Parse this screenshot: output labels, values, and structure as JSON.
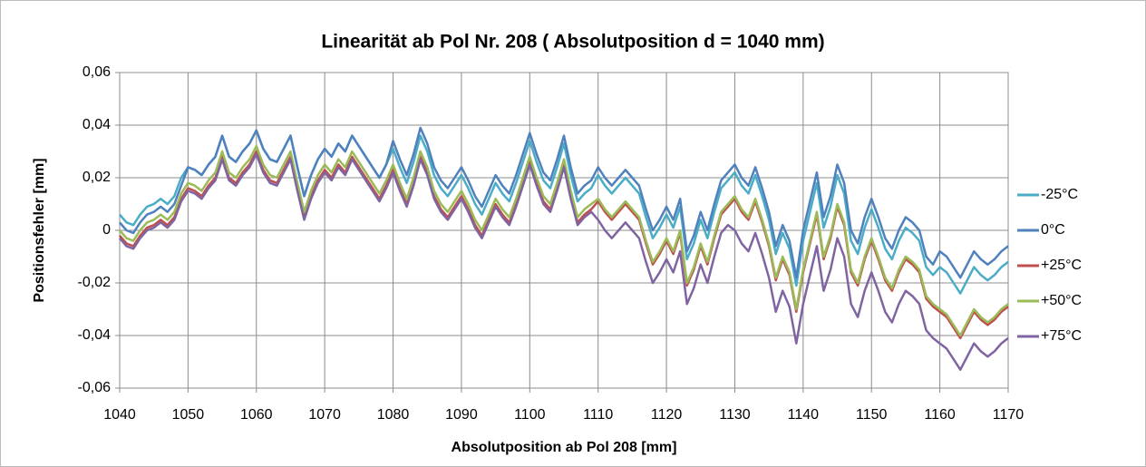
{
  "chart_data": {
    "type": "line",
    "title": "Linearität ab Pol Nr. 208 ( Absolutposition d = 1040 mm)",
    "x_label": "Absolutposition  ab Pol 208 [mm]",
    "y_label": "Positionsfehler [mm]",
    "xlim": [
      1040,
      1170
    ],
    "xticks": [
      1040,
      1050,
      1060,
      1070,
      1080,
      1090,
      1100,
      1110,
      1120,
      1130,
      1140,
      1150,
      1160,
      1170
    ],
    "ylim": [
      -0.06,
      0.06
    ],
    "yticks": [
      {
        "value": -0.06,
        "label": "-0,06"
      },
      {
        "value": -0.04,
        "label": "-0,04"
      },
      {
        "value": -0.02,
        "label": "-0,02"
      },
      0,
      {
        "value": 0.02,
        "label": "0,02"
      },
      {
        "value": 0.04,
        "label": "0,04"
      },
      {
        "value": 0.06,
        "label": "0,06"
      }
    ],
    "grid": true,
    "legend": "right",
    "x": [
      1040,
      1041,
      1042,
      1043,
      1044,
      1045,
      1046,
      1047,
      1048,
      1049,
      1050,
      1051,
      1052,
      1053,
      1054,
      1055,
      1056,
      1057,
      1058,
      1059,
      1060,
      1061,
      1062,
      1063,
      1064,
      1065,
      1066,
      1067,
      1068,
      1069,
      1070,
      1071,
      1072,
      1073,
      1074,
      1075,
      1076,
      1077,
      1078,
      1079,
      1080,
      1081,
      1082,
      1083,
      1084,
      1085,
      1086,
      1087,
      1088,
      1089,
      1090,
      1091,
      1092,
      1093,
      1094,
      1095,
      1096,
      1097,
      1098,
      1099,
      1100,
      1101,
      1102,
      1103,
      1104,
      1105,
      1106,
      1107,
      1108,
      1109,
      1110,
      1111,
      1112,
      1113,
      1114,
      1115,
      1116,
      1117,
      1118,
      1119,
      1120,
      1121,
      1122,
      1123,
      1124,
      1125,
      1126,
      1127,
      1128,
      1129,
      1130,
      1131,
      1132,
      1133,
      1134,
      1135,
      1136,
      1137,
      1138,
      1139,
      1140,
      1141,
      1142,
      1143,
      1144,
      1145,
      1146,
      1147,
      1148,
      1149,
      1150,
      1151,
      1152,
      1153,
      1154,
      1155,
      1156,
      1157,
      1158,
      1159,
      1160,
      1161,
      1162,
      1163,
      1164,
      1165,
      1166,
      1167,
      1168,
      1169,
      1170
    ],
    "series": [
      {
        "name": "-25°C",
        "color": "#4bacc6",
        "values": [
          0.006,
          0.003,
          0.002,
          0.006,
          0.009,
          0.01,
          0.012,
          0.01,
          0.013,
          0.02,
          0.024,
          0.023,
          0.021,
          0.025,
          0.028,
          0.036,
          0.028,
          0.026,
          0.03,
          0.033,
          0.038,
          0.031,
          0.027,
          0.026,
          0.031,
          0.036,
          0.024,
          0.013,
          0.021,
          0.027,
          0.031,
          0.028,
          0.033,
          0.03,
          0.036,
          0.032,
          0.028,
          0.024,
          0.02,
          0.025,
          0.031,
          0.024,
          0.018,
          0.026,
          0.036,
          0.03,
          0.021,
          0.016,
          0.013,
          0.017,
          0.021,
          0.016,
          0.01,
          0.006,
          0.012,
          0.018,
          0.014,
          0.011,
          0.018,
          0.026,
          0.034,
          0.026,
          0.019,
          0.016,
          0.024,
          0.033,
          0.021,
          0.011,
          0.014,
          0.016,
          0.021,
          0.017,
          0.014,
          0.017,
          0.02,
          0.017,
          0.014,
          0.005,
          -0.003,
          0.001,
          0.006,
          0.001,
          0.009,
          -0.011,
          -0.005,
          0.004,
          -0.003,
          0.007,
          0.016,
          0.019,
          0.022,
          0.017,
          0.014,
          0.021,
          0.013,
          0.004,
          -0.009,
          -0.001,
          -0.007,
          -0.021,
          -0.004,
          0.007,
          0.018,
          0.001,
          0.009,
          0.021,
          0.014,
          -0.004,
          -0.009,
          0.001,
          0.008,
          0.001,
          -0.007,
          -0.011,
          -0.004,
          0.001,
          -0.001,
          -0.004,
          -0.014,
          -0.017,
          -0.014,
          -0.016,
          -0.02,
          -0.024,
          -0.019,
          -0.014,
          -0.017,
          -0.019,
          -0.017,
          -0.014,
          -0.012
        ]
      },
      {
        "name": "0°C",
        "color": "#4f81bd",
        "values": [
          0.003,
          0.0,
          -0.001,
          0.003,
          0.006,
          0.007,
          0.009,
          0.007,
          0.01,
          0.017,
          0.024,
          0.023,
          0.021,
          0.025,
          0.028,
          0.036,
          0.028,
          0.026,
          0.03,
          0.033,
          0.038,
          0.031,
          0.027,
          0.026,
          0.031,
          0.036,
          0.024,
          0.013,
          0.021,
          0.027,
          0.031,
          0.028,
          0.033,
          0.03,
          0.036,
          0.032,
          0.028,
          0.024,
          0.02,
          0.025,
          0.034,
          0.027,
          0.021,
          0.029,
          0.039,
          0.033,
          0.024,
          0.019,
          0.016,
          0.02,
          0.024,
          0.019,
          0.013,
          0.009,
          0.015,
          0.021,
          0.017,
          0.014,
          0.021,
          0.029,
          0.037,
          0.029,
          0.022,
          0.019,
          0.027,
          0.036,
          0.024,
          0.014,
          0.017,
          0.019,
          0.024,
          0.02,
          0.017,
          0.02,
          0.023,
          0.02,
          0.017,
          0.008,
          0.0,
          0.004,
          0.009,
          0.004,
          0.012,
          -0.008,
          -0.002,
          0.007,
          0.0,
          0.01,
          0.019,
          0.022,
          0.025,
          0.02,
          0.017,
          0.024,
          0.016,
          0.007,
          -0.006,
          0.002,
          -0.004,
          -0.018,
          0.0,
          0.011,
          0.022,
          0.005,
          0.013,
          0.025,
          0.018,
          0.0,
          -0.005,
          0.005,
          0.012,
          0.005,
          -0.003,
          -0.007,
          0.0,
          0.005,
          0.003,
          0.0,
          -0.01,
          -0.013,
          -0.008,
          -0.01,
          -0.014,
          -0.018,
          -0.013,
          -0.008,
          -0.011,
          -0.013,
          -0.011,
          -0.008,
          -0.006
        ]
      },
      {
        "name": "+25°C",
        "color": "#c0504d",
        "values": [
          -0.002,
          -0.005,
          -0.006,
          -0.002,
          0.001,
          0.002,
          0.004,
          0.002,
          0.005,
          0.012,
          0.016,
          0.015,
          0.013,
          0.017,
          0.02,
          0.028,
          0.02,
          0.018,
          0.022,
          0.025,
          0.03,
          0.023,
          0.019,
          0.018,
          0.023,
          0.028,
          0.016,
          0.005,
          0.013,
          0.019,
          0.023,
          0.02,
          0.025,
          0.022,
          0.028,
          0.024,
          0.02,
          0.016,
          0.012,
          0.017,
          0.023,
          0.016,
          0.01,
          0.018,
          0.028,
          0.022,
          0.013,
          0.008,
          0.005,
          0.009,
          0.013,
          0.008,
          0.002,
          -0.002,
          0.004,
          0.01,
          0.006,
          0.003,
          0.01,
          0.018,
          0.026,
          0.018,
          0.011,
          0.008,
          0.016,
          0.025,
          0.013,
          0.003,
          0.006,
          0.008,
          0.011,
          0.007,
          0.004,
          0.007,
          0.01,
          0.007,
          0.004,
          -0.005,
          -0.013,
          -0.009,
          -0.004,
          -0.009,
          -0.001,
          -0.021,
          -0.015,
          -0.006,
          -0.013,
          -0.003,
          0.006,
          0.009,
          0.012,
          0.007,
          0.004,
          0.011,
          0.003,
          -0.006,
          -0.019,
          -0.011,
          -0.017,
          -0.031,
          -0.016,
          -0.005,
          0.006,
          -0.011,
          -0.003,
          0.009,
          0.002,
          -0.016,
          -0.021,
          -0.011,
          -0.004,
          -0.011,
          -0.019,
          -0.023,
          -0.016,
          -0.011,
          -0.013,
          -0.016,
          -0.026,
          -0.029,
          -0.031,
          -0.033,
          -0.037,
          -0.041,
          -0.036,
          -0.031,
          -0.034,
          -0.036,
          -0.034,
          -0.031,
          -0.029
        ]
      },
      {
        "name": "+50°C",
        "color": "#9bbb59",
        "values": [
          0.0,
          -0.003,
          -0.004,
          0.0,
          0.003,
          0.004,
          0.006,
          0.004,
          0.007,
          0.014,
          0.018,
          0.017,
          0.015,
          0.019,
          0.022,
          0.03,
          0.022,
          0.02,
          0.024,
          0.027,
          0.032,
          0.025,
          0.021,
          0.02,
          0.025,
          0.03,
          0.018,
          0.007,
          0.015,
          0.021,
          0.025,
          0.022,
          0.027,
          0.024,
          0.03,
          0.026,
          0.022,
          0.018,
          0.014,
          0.019,
          0.025,
          0.018,
          0.012,
          0.02,
          0.03,
          0.024,
          0.015,
          0.01,
          0.007,
          0.011,
          0.015,
          0.01,
          0.004,
          0.0,
          0.006,
          0.012,
          0.008,
          0.005,
          0.012,
          0.02,
          0.028,
          0.02,
          0.013,
          0.01,
          0.018,
          0.027,
          0.015,
          0.005,
          0.008,
          0.01,
          0.012,
          0.008,
          0.005,
          0.008,
          0.011,
          0.008,
          0.005,
          -0.004,
          -0.012,
          -0.008,
          -0.003,
          -0.008,
          0.0,
          -0.02,
          -0.014,
          -0.005,
          -0.012,
          -0.002,
          0.007,
          0.01,
          0.013,
          0.008,
          0.005,
          0.012,
          0.004,
          -0.005,
          -0.018,
          -0.01,
          -0.016,
          -0.03,
          -0.015,
          -0.004,
          0.007,
          -0.01,
          -0.002,
          0.01,
          0.003,
          -0.015,
          -0.02,
          -0.01,
          -0.003,
          -0.01,
          -0.018,
          -0.022,
          -0.015,
          -0.01,
          -0.012,
          -0.015,
          -0.025,
          -0.028,
          -0.03,
          -0.032,
          -0.036,
          -0.04,
          -0.035,
          -0.03,
          -0.033,
          -0.035,
          -0.033,
          -0.03,
          -0.028
        ]
      },
      {
        "name": "+75°C",
        "color": "#8064a2",
        "values": [
          -0.003,
          -0.006,
          -0.007,
          -0.003,
          0.0,
          0.001,
          0.003,
          0.001,
          0.004,
          0.011,
          0.015,
          0.014,
          0.012,
          0.016,
          0.019,
          0.027,
          0.019,
          0.017,
          0.021,
          0.024,
          0.029,
          0.022,
          0.018,
          0.017,
          0.022,
          0.027,
          0.015,
          0.004,
          0.012,
          0.018,
          0.022,
          0.019,
          0.024,
          0.021,
          0.027,
          0.023,
          0.019,
          0.015,
          0.011,
          0.016,
          0.022,
          0.015,
          0.009,
          0.017,
          0.027,
          0.021,
          0.012,
          0.007,
          0.004,
          0.008,
          0.012,
          0.007,
          0.001,
          -0.003,
          0.003,
          0.009,
          0.005,
          0.002,
          0.009,
          0.017,
          0.025,
          0.017,
          0.01,
          0.007,
          0.015,
          0.024,
          0.012,
          0.002,
          0.005,
          0.007,
          0.004,
          0.0,
          -0.003,
          0.0,
          0.003,
          0.0,
          -0.003,
          -0.012,
          -0.02,
          -0.016,
          -0.011,
          -0.016,
          -0.008,
          -0.028,
          -0.022,
          -0.013,
          -0.02,
          -0.01,
          -0.001,
          0.002,
          0.0,
          -0.005,
          -0.008,
          -0.001,
          -0.009,
          -0.018,
          -0.031,
          -0.023,
          -0.029,
          -0.043,
          -0.028,
          -0.017,
          -0.006,
          -0.023,
          -0.015,
          -0.003,
          -0.01,
          -0.028,
          -0.033,
          -0.023,
          -0.016,
          -0.023,
          -0.031,
          -0.035,
          -0.028,
          -0.023,
          -0.025,
          -0.028,
          -0.038,
          -0.041,
          -0.043,
          -0.045,
          -0.049,
          -0.053,
          -0.048,
          -0.043,
          -0.046,
          -0.048,
          -0.046,
          -0.043,
          -0.041
        ]
      }
    ]
  }
}
